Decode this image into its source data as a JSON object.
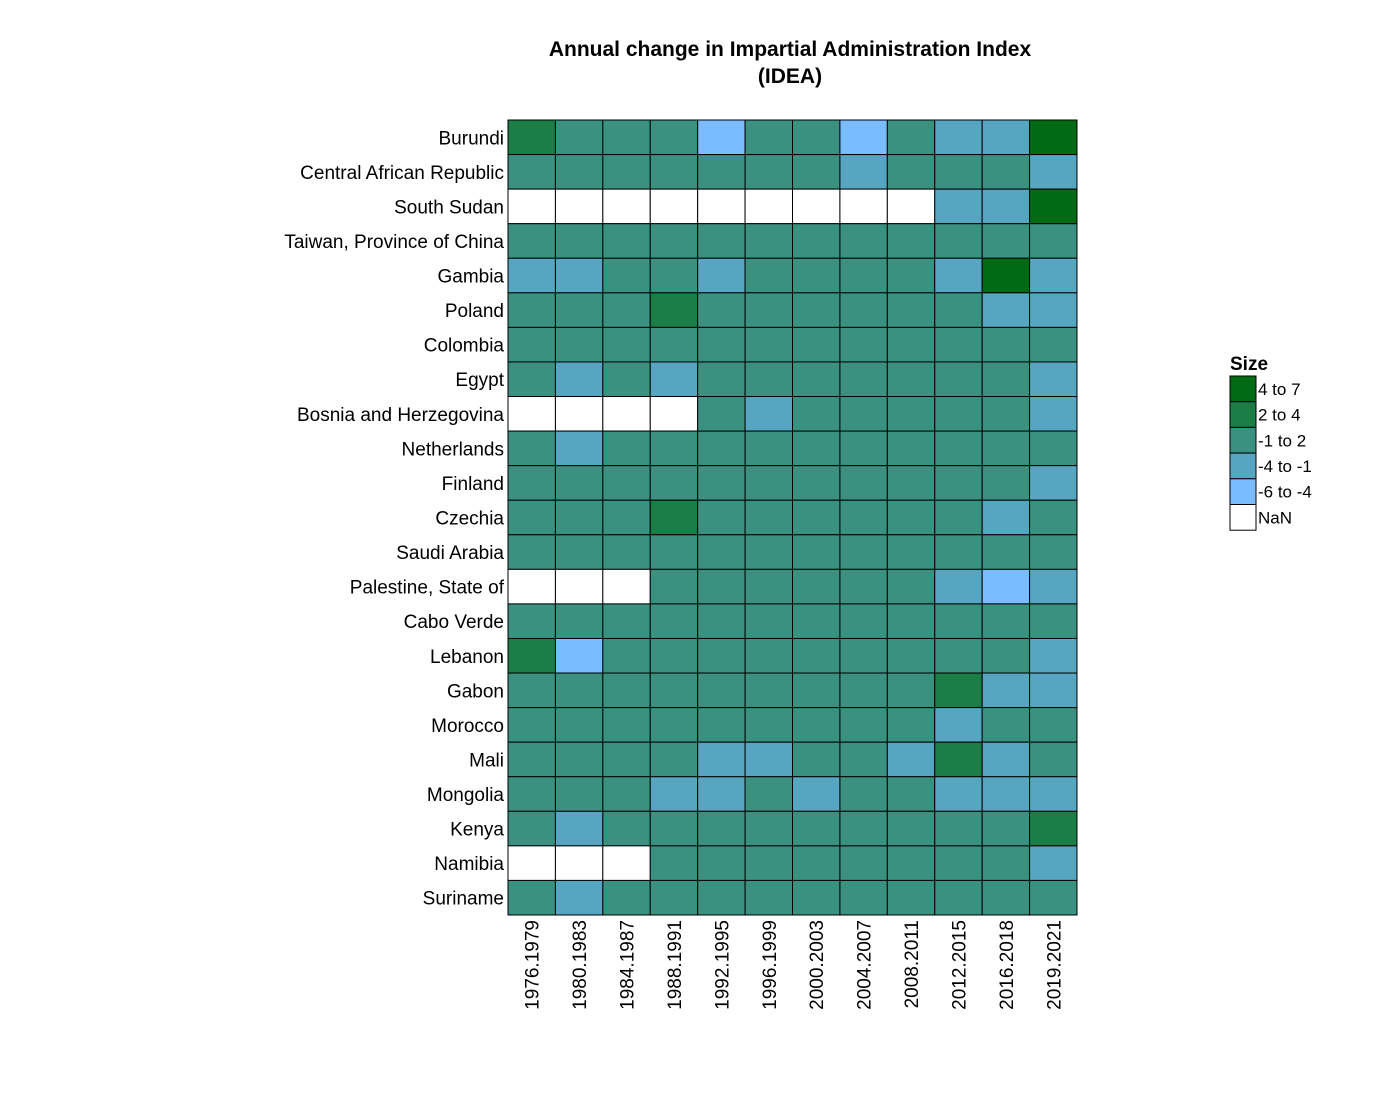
{
  "chart_data": {
    "type": "heatmap",
    "title": [
      "Annual change in Impartial Administration Index",
      "(IDEA)"
    ],
    "rows": [
      "Burundi",
      "Central African Republic",
      "South Sudan",
      "Taiwan, Province of China",
      "Gambia",
      "Poland",
      "Colombia",
      "Egypt",
      "Bosnia and Herzegovina",
      "Netherlands",
      "Finland",
      "Czechia",
      "Saudi Arabia",
      "Palestine, State of",
      "Cabo Verde",
      "Lebanon",
      "Gabon",
      "Morocco",
      "Mali",
      "Mongolia",
      "Kenya",
      "Namibia",
      "Suriname"
    ],
    "columns": [
      "1976.1979",
      "1980.1983",
      "1984.1987",
      "1988.1991",
      "1992.1995",
      "1996.1999",
      "2000.2003",
      "2004.2007",
      "2008.2011",
      "2012.2015",
      "2016.2018",
      "2019.2021"
    ],
    "legend": {
      "title": "Size",
      "placement": "right",
      "categories": [
        {
          "key": "4to7",
          "label": "4  to  7",
          "color": "#006b14"
        },
        {
          "key": "2to4",
          "label": "2  to  4",
          "color": "#1b7e46"
        },
        {
          "key": "-1to2",
          "label": "-1  to  2",
          "color": "#3a9180"
        },
        {
          "key": "-4to-1",
          "label": "-4  to  -1",
          "color": "#57a6c1"
        },
        {
          "key": "-6to-4",
          "label": "-6  to  -4",
          "color": "#79bcff"
        },
        {
          "key": "NaN",
          "label": "NaN",
          "color": "#ffffff"
        }
      ]
    },
    "cells": [
      [
        "2to4",
        "-1to2",
        "-1to2",
        "-1to2",
        "-6to-4",
        "-1to2",
        "-1to2",
        "-6to-4",
        "-1to2",
        "-4to-1",
        "-4to-1",
        "4to7"
      ],
      [
        "-1to2",
        "-1to2",
        "-1to2",
        "-1to2",
        "-1to2",
        "-1to2",
        "-1to2",
        "-4to-1",
        "-1to2",
        "-1to2",
        "-1to2",
        "-4to-1"
      ],
      [
        "NaN",
        "NaN",
        "NaN",
        "NaN",
        "NaN",
        "NaN",
        "NaN",
        "NaN",
        "NaN",
        "-4to-1",
        "-4to-1",
        "4to7"
      ],
      [
        "-1to2",
        "-1to2",
        "-1to2",
        "-1to2",
        "-1to2",
        "-1to2",
        "-1to2",
        "-1to2",
        "-1to2",
        "-1to2",
        "-1to2",
        "-1to2"
      ],
      [
        "-4to-1",
        "-4to-1",
        "-1to2",
        "-1to2",
        "-4to-1",
        "-1to2",
        "-1to2",
        "-1to2",
        "-1to2",
        "-4to-1",
        "4to7",
        "-4to-1"
      ],
      [
        "-1to2",
        "-1to2",
        "-1to2",
        "2to4",
        "-1to2",
        "-1to2",
        "-1to2",
        "-1to2",
        "-1to2",
        "-1to2",
        "-4to-1",
        "-4to-1"
      ],
      [
        "-1to2",
        "-1to2",
        "-1to2",
        "-1to2",
        "-1to2",
        "-1to2",
        "-1to2",
        "-1to2",
        "-1to2",
        "-1to2",
        "-1to2",
        "-1to2"
      ],
      [
        "-1to2",
        "-4to-1",
        "-1to2",
        "-4to-1",
        "-1to2",
        "-1to2",
        "-1to2",
        "-1to2",
        "-1to2",
        "-1to2",
        "-1to2",
        "-4to-1"
      ],
      [
        "NaN",
        "NaN",
        "NaN",
        "NaN",
        "-1to2",
        "-4to-1",
        "-1to2",
        "-1to2",
        "-1to2",
        "-1to2",
        "-1to2",
        "-4to-1"
      ],
      [
        "-1to2",
        "-4to-1",
        "-1to2",
        "-1to2",
        "-1to2",
        "-1to2",
        "-1to2",
        "-1to2",
        "-1to2",
        "-1to2",
        "-1to2",
        "-1to2"
      ],
      [
        "-1to2",
        "-1to2",
        "-1to2",
        "-1to2",
        "-1to2",
        "-1to2",
        "-1to2",
        "-1to2",
        "-1to2",
        "-1to2",
        "-1to2",
        "-4to-1"
      ],
      [
        "-1to2",
        "-1to2",
        "-1to2",
        "2to4",
        "-1to2",
        "-1to2",
        "-1to2",
        "-1to2",
        "-1to2",
        "-1to2",
        "-4to-1",
        "-1to2"
      ],
      [
        "-1to2",
        "-1to2",
        "-1to2",
        "-1to2",
        "-1to2",
        "-1to2",
        "-1to2",
        "-1to2",
        "-1to2",
        "-1to2",
        "-1to2",
        "-1to2"
      ],
      [
        "NaN",
        "NaN",
        "NaN",
        "-1to2",
        "-1to2",
        "-1to2",
        "-1to2",
        "-1to2",
        "-1to2",
        "-4to-1",
        "-6to-4",
        "-4to-1"
      ],
      [
        "-1to2",
        "-1to2",
        "-1to2",
        "-1to2",
        "-1to2",
        "-1to2",
        "-1to2",
        "-1to2",
        "-1to2",
        "-1to2",
        "-1to2",
        "-1to2"
      ],
      [
        "2to4",
        "-6to-4",
        "-1to2",
        "-1to2",
        "-1to2",
        "-1to2",
        "-1to2",
        "-1to2",
        "-1to2",
        "-1to2",
        "-1to2",
        "-4to-1"
      ],
      [
        "-1to2",
        "-1to2",
        "-1to2",
        "-1to2",
        "-1to2",
        "-1to2",
        "-1to2",
        "-1to2",
        "-1to2",
        "2to4",
        "-4to-1",
        "-4to-1"
      ],
      [
        "-1to2",
        "-1to2",
        "-1to2",
        "-1to2",
        "-1to2",
        "-1to2",
        "-1to2",
        "-1to2",
        "-1to2",
        "-4to-1",
        "-1to2",
        "-1to2"
      ],
      [
        "-1to2",
        "-1to2",
        "-1to2",
        "-1to2",
        "-4to-1",
        "-4to-1",
        "-1to2",
        "-1to2",
        "-4to-1",
        "2to4",
        "-4to-1",
        "-1to2"
      ],
      [
        "-1to2",
        "-1to2",
        "-1to2",
        "-4to-1",
        "-4to-1",
        "-1to2",
        "-4to-1",
        "-1to2",
        "-1to2",
        "-4to-1",
        "-4to-1",
        "-4to-1"
      ],
      [
        "-1to2",
        "-4to-1",
        "-1to2",
        "-1to2",
        "-1to2",
        "-1to2",
        "-1to2",
        "-1to2",
        "-1to2",
        "-1to2",
        "-1to2",
        "2to4"
      ],
      [
        "NaN",
        "NaN",
        "NaN",
        "-1to2",
        "-1to2",
        "-1to2",
        "-1to2",
        "-1to2",
        "-1to2",
        "-1to2",
        "-1to2",
        "-4to-1"
      ],
      [
        "-1to2",
        "-4to-1",
        "-1to2",
        "-1to2",
        "-1to2",
        "-1to2",
        "-1to2",
        "-1to2",
        "-1to2",
        "-1to2",
        "-1to2",
        "-1to2"
      ]
    ]
  }
}
